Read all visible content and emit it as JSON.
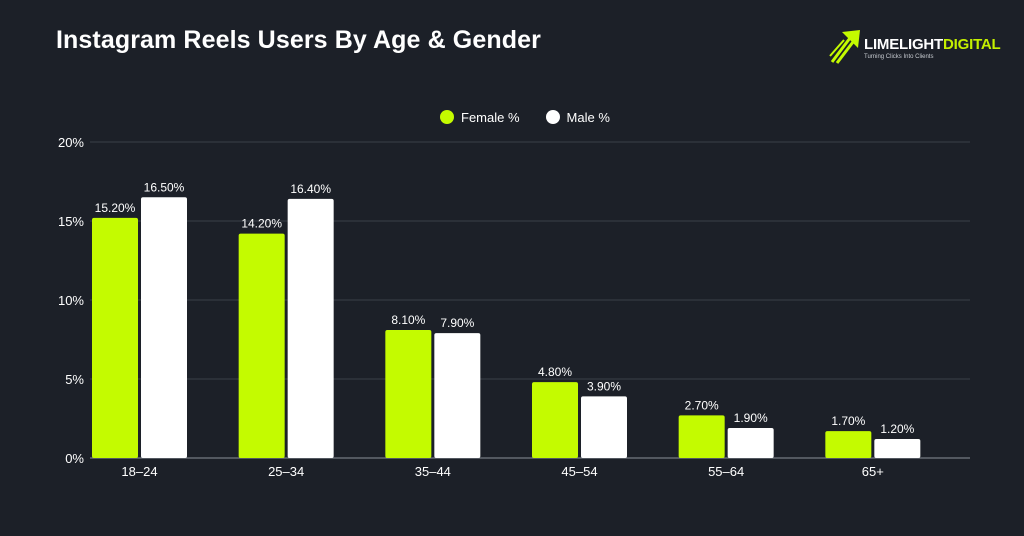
{
  "title": "Instagram Reels Users By Age & Gender",
  "logo": {
    "name_part1": "LIMELIGHT",
    "name_part2": "DIGITAL",
    "tagline": "Turning Clicks Into Clients"
  },
  "colors": {
    "background": "#1c2028",
    "female": "#c4fb00",
    "male": "#ffffff",
    "grid": "#3a3f48"
  },
  "chart_data": {
    "type": "bar",
    "title": "Instagram Reels Users By Age & Gender",
    "xlabel": "",
    "ylabel": "",
    "categories": [
      "18–24",
      "25–34",
      "35–44",
      "45–54",
      "55–64",
      "65+"
    ],
    "series": [
      {
        "name": "Female %",
        "values": [
          15.2,
          14.2,
          8.1,
          4.8,
          2.7,
          1.7
        ],
        "labels": [
          "15.20%",
          "14.20%",
          "8.10%",
          "4.80%",
          "2.70%",
          "1.70%"
        ]
      },
      {
        "name": "Male %",
        "values": [
          16.5,
          16.4,
          7.9,
          3.9,
          1.9,
          1.2
        ],
        "labels": [
          "16.50%",
          "16.40%",
          "7.90%",
          "3.90%",
          "1.90%",
          "1.20%"
        ]
      }
    ],
    "ylim": [
      0,
      20
    ],
    "yticks": [
      0,
      5,
      10,
      15,
      20
    ],
    "ytick_labels": [
      "0%",
      "5%",
      "10%",
      "15%",
      "20%"
    ],
    "grid": true,
    "legend_position": "top-center"
  }
}
